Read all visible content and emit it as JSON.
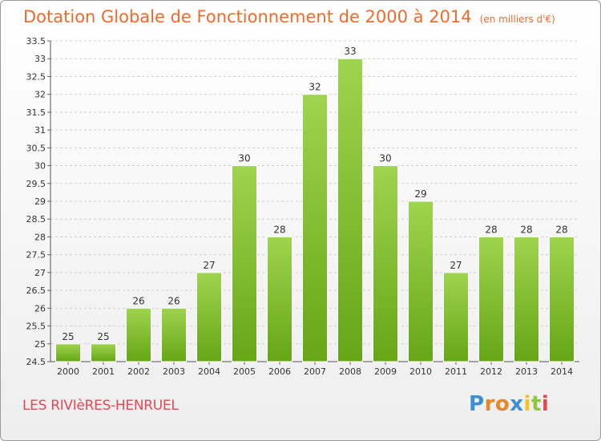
{
  "header": {
    "title": "Dotation Globale de Fonctionnement de 2000 à 2014",
    "unit": "(en milliers d'€)"
  },
  "footer": {
    "commune": "LES RIVIèRES-HENRUEL",
    "logo_letters": [
      "P",
      "r",
      "o",
      "x",
      "i",
      "t",
      "i"
    ],
    "logo_colors": [
      "#3a8fd6",
      "#e8862a",
      "#e8862a",
      "#3a8fd6",
      "#f2c21d",
      "#8dc63f",
      "#e04a55"
    ]
  },
  "chart_data": {
    "type": "bar",
    "categories": [
      "2000",
      "2001",
      "2002",
      "2003",
      "2004",
      "2005",
      "2006",
      "2007",
      "2008",
      "2009",
      "2010",
      "2011",
      "2012",
      "2013",
      "2014"
    ],
    "values": [
      25,
      25,
      26,
      26,
      27,
      30,
      28,
      32,
      33,
      30,
      29,
      27,
      28,
      28,
      28
    ],
    "title": "Dotation Globale de Fonctionnement de 2000 à 2014",
    "ylim": [
      24.5,
      33.5
    ],
    "yticks": [
      "24.5",
      "25",
      "25.5",
      "26",
      "26.5",
      "27",
      "27.5",
      "28",
      "28.5",
      "29",
      "29.5",
      "30",
      "30.5",
      "31",
      "31.5",
      "32",
      "32.5",
      "33",
      "33.5"
    ],
    "grid": true,
    "bar_color": "#8cc63f"
  }
}
